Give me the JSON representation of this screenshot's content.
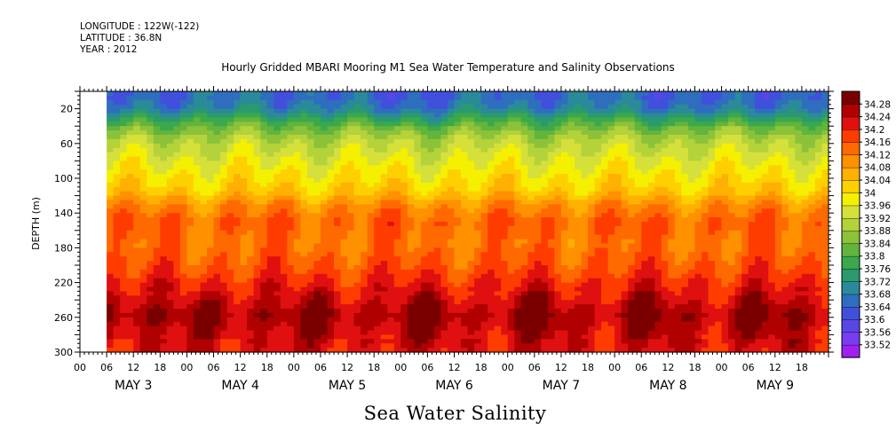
{
  "header": {
    "longitude": "LONGITUDE : 122W(-122)",
    "latitude": "LATITUDE : 36.8N",
    "year": "YEAR : 2012"
  },
  "chart_data": {
    "type": "heatmap",
    "title": "Hourly Gridded MBARI Mooring M1 Sea Water Temperature and Salinity Observations",
    "bottom_title": "Sea Water Salinity",
    "xlabel": "",
    "ylabel": "DEPTH (m)",
    "y_reversed": true,
    "ylim": [
      300,
      0
    ],
    "y_ticks": [
      20,
      60,
      100,
      140,
      180,
      220,
      260,
      300
    ],
    "x_hour_ticks": [
      "00",
      "06",
      "12",
      "18",
      "00",
      "06",
      "12",
      "18",
      "00",
      "06",
      "12",
      "18",
      "00",
      "06",
      "12",
      "18",
      "00",
      "06",
      "12",
      "18",
      "00",
      "06",
      "12",
      "18",
      "00",
      "06",
      "12",
      "18"
    ],
    "x_day_labels": [
      "MAY  3",
      "MAY  4",
      "MAY  5",
      "MAY  6",
      "MAY  7",
      "MAY  8",
      "MAY  9"
    ],
    "x_range_hours": [
      0,
      168
    ],
    "data_start_hour": 6,
    "colorbar": {
      "levels": [
        33.52,
        33.56,
        33.6,
        33.64,
        33.68,
        33.72,
        33.76,
        33.8,
        33.84,
        33.88,
        33.92,
        33.96,
        34,
        34.04,
        34.08,
        34.12,
        34.16,
        34.2,
        34.24,
        34.28
      ],
      "labels": [
        "33.52",
        "33.56",
        "33.6",
        "33.64",
        "33.68",
        "33.72",
        "33.76",
        "33.8",
        "33.84",
        "33.88",
        "33.92",
        "33.96",
        "34",
        "34.04",
        "34.08",
        "34.12",
        "34.16",
        "34.2",
        "34.24",
        "34.28"
      ],
      "colors": [
        "#a020f0",
        "#7a3cf0",
        "#5a46e6",
        "#4150dc",
        "#2f6ebe",
        "#2a8a9a",
        "#2a9a6e",
        "#3aa84c",
        "#62b43c",
        "#8cc23a",
        "#b4d23a",
        "#d6e03a",
        "#f4f000",
        "#ffd000",
        "#ffb000",
        "#ff9000",
        "#ff6a00",
        "#ff3c00",
        "#e01010",
        "#b00000",
        "#7a0000"
      ]
    },
    "profile": [
      {
        "depth": 8,
        "value": 33.66
      },
      {
        "depth": 20,
        "value": 33.69
      },
      {
        "depth": 35,
        "value": 33.8
      },
      {
        "depth": 55,
        "value": 33.9
      },
      {
        "depth": 80,
        "value": 33.96
      },
      {
        "depth": 100,
        "value": 34.0
      },
      {
        "depth": 115,
        "value": 34.03
      },
      {
        "depth": 130,
        "value": 34.1
      },
      {
        "depth": 150,
        "value": 34.15
      },
      {
        "depth": 175,
        "value": 34.13
      },
      {
        "depth": 200,
        "value": 34.16
      },
      {
        "depth": 225,
        "value": 34.21
      },
      {
        "depth": 245,
        "value": 34.25
      },
      {
        "depth": 258,
        "value": 34.28
      },
      {
        "depth": 275,
        "value": 34.25
      },
      {
        "depth": 300,
        "value": 34.22
      }
    ]
  }
}
